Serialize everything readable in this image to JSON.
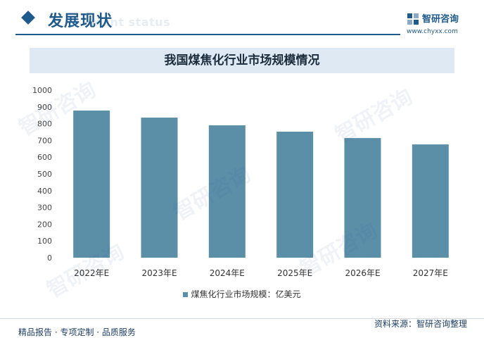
{
  "header": {
    "title": "发展现状",
    "subtitle": "ment status",
    "brand_name": "智研咨询",
    "brand_url": "www.chyxx.com"
  },
  "chart_title": "我国煤焦化行业市场规模情况",
  "chart_data": {
    "type": "bar",
    "title": "我国煤焦化行业市场规模情况",
    "categories": [
      "2022年E",
      "2023年E",
      "2024年E",
      "2025年E",
      "2026年E",
      "2027年E"
    ],
    "series": [
      {
        "name": "煤焦化行业市场规模：亿美元",
        "values": [
          878,
          836,
          790,
          752,
          714,
          676
        ]
      }
    ],
    "y_ticks": [
      "0",
      "100",
      "200",
      "300",
      "400",
      "500",
      "600",
      "700",
      "800",
      "900",
      "1000"
    ],
    "ylim": [
      0,
      1000
    ],
    "color": "#5b8fa8",
    "legend_position": "bottom",
    "grid": false
  },
  "legend_label": "煤焦化行业市场规模：亿美元",
  "footer": {
    "left": "精品报告 · 专项定制 · 品质服务",
    "right": "资料来源：智研咨询整理"
  },
  "watermark_text": "智研咨询"
}
